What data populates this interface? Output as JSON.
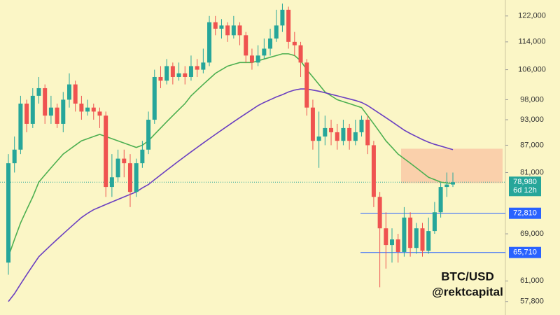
{
  "chart_data": {
    "type": "candlestick",
    "log_scale": true,
    "up_color": "#26a69a",
    "down_color": "#ef5350",
    "ylim": [
      55800,
      127200
    ],
    "yticks": [
      {
        "value": 122000,
        "label": "122,000"
      },
      {
        "value": 114000,
        "label": "114,000"
      },
      {
        "value": 106000,
        "label": "106,000"
      },
      {
        "value": 98000,
        "label": "98,000"
      },
      {
        "value": 93000,
        "label": "93,000"
      },
      {
        "value": 87000,
        "label": "87,000"
      },
      {
        "value": 81000,
        "label": "81,000"
      },
      {
        "value": 69000,
        "label": "69,000"
      },
      {
        "value": 61000,
        "label": "61,000"
      },
      {
        "value": 57800,
        "label": "57,800"
      }
    ],
    "open": [
      64000,
      83000,
      86000,
      97000,
      92000,
      99000,
      101000,
      94000,
      96000,
      92000,
      98000,
      102000,
      97000,
      95000,
      96000,
      95000,
      94000,
      78000,
      80000,
      84000,
      83000,
      77000,
      83000,
      86000,
      93000,
      104000,
      103000,
      107000,
      104000,
      105000,
      104000,
      107000,
      106000,
      108000,
      120000,
      118000,
      119000,
      116000,
      119000,
      116000,
      110000,
      108000,
      110000,
      112000,
      115000,
      119000,
      124000,
      114000,
      113000,
      108000,
      96000,
      88000,
      89000,
      91000,
      90000,
      88000,
      91000,
      88000,
      90000,
      93000,
      87000,
      76000,
      70000,
      67000,
      68000,
      65800,
      72000,
      66500,
      70000,
      66000,
      69500,
      73000,
      78000,
      78500
    ],
    "high": [
      85000,
      89000,
      99000,
      98000,
      101000,
      104000,
      102000,
      99000,
      97000,
      100000,
      105000,
      103000,
      99000,
      98000,
      97000,
      96000,
      95000,
      85000,
      86000,
      86000,
      85000,
      84000,
      88000,
      95000,
      106000,
      107000,
      109000,
      108000,
      108000,
      107000,
      110000,
      109000,
      112000,
      122000,
      122000,
      121000,
      120000,
      122000,
      120000,
      117000,
      112000,
      113000,
      115000,
      118000,
      124000,
      126000,
      125000,
      117000,
      114000,
      109000,
      98000,
      95000,
      94000,
      93000,
      92000,
      93000,
      92000,
      93000,
      94000,
      94000,
      88000,
      77000,
      73000,
      70000,
      69000,
      74000,
      73000,
      71000,
      71000,
      72000,
      75000,
      79000,
      81000,
      81000
    ],
    "low": [
      62000,
      81000,
      85000,
      90000,
      91000,
      97000,
      92000,
      92000,
      91000,
      90000,
      96000,
      95000,
      93000,
      94000,
      93000,
      91000,
      76000,
      76000,
      79000,
      80000,
      74000,
      76000,
      82000,
      85000,
      92000,
      101000,
      102000,
      102000,
      103000,
      102000,
      103000,
      104000,
      105000,
      107000,
      116000,
      115000,
      114000,
      115000,
      113000,
      108000,
      106000,
      107000,
      109000,
      110000,
      114000,
      117000,
      112000,
      110000,
      104000,
      94000,
      86000,
      82000,
      87000,
      87000,
      86000,
      87000,
      86000,
      87000,
      89000,
      85000,
      74000,
      60000,
      63000,
      64000,
      64000,
      65000,
      65000,
      65500,
      65000,
      65500,
      69000,
      72000,
      76000,
      78000
    ],
    "close": [
      83000,
      86000,
      97000,
      92000,
      99000,
      101000,
      94000,
      96000,
      92000,
      98000,
      102000,
      97000,
      95000,
      96000,
      95000,
      94000,
      78000,
      80000,
      84000,
      83000,
      77000,
      83000,
      86000,
      93000,
      104000,
      103000,
      107000,
      104000,
      105000,
      104000,
      107000,
      106000,
      108000,
      120000,
      118000,
      119000,
      116000,
      119000,
      116000,
      110000,
      108000,
      110000,
      112000,
      115000,
      119000,
      124000,
      114000,
      113000,
      108000,
      96000,
      88000,
      89000,
      91000,
      90000,
      88000,
      91000,
      88000,
      90000,
      93000,
      87000,
      76000,
      70000,
      67000,
      68000,
      65800,
      72000,
      66500,
      70000,
      66000,
      69500,
      73000,
      78000,
      78500,
      78980
    ],
    "moving_averages": [
      {
        "color": "#4caf50",
        "values": [
          65000,
          68000,
          71000,
          73500,
          76000,
          79000,
          80500,
          82000,
          83500,
          85000,
          86000,
          87000,
          88000,
          88500,
          89000,
          89500,
          89000,
          88500,
          88000,
          87500,
          87000,
          86500,
          87000,
          88000,
          89500,
          91000,
          92500,
          94000,
          95500,
          97000,
          99000,
          100500,
          102000,
          103500,
          105000,
          106000,
          107000,
          107500,
          108000,
          108000,
          108000,
          108500,
          109000,
          109500,
          110000,
          110500,
          110500,
          110000,
          108500,
          106000,
          104000,
          102000,
          100000,
          99000,
          98000,
          97500,
          97000,
          96500,
          96000,
          94000,
          92000,
          90000,
          88000,
          86500,
          85000,
          84000,
          83000,
          82000,
          81000,
          80000,
          79500,
          79000,
          78800,
          78700
        ]
      },
      {
        "color": "#6a3fc1",
        "values": [
          57800,
          59000,
          60500,
          62000,
          63500,
          65000,
          66000,
          67000,
          68000,
          69000,
          70000,
          71000,
          72000,
          72800,
          73500,
          74000,
          74500,
          75000,
          75500,
          76000,
          76500,
          77000,
          77800,
          78500,
          79500,
          80500,
          81500,
          82500,
          83500,
          84500,
          85500,
          86500,
          87500,
          88500,
          89500,
          90500,
          91500,
          92500,
          93500,
          94500,
          95500,
          96500,
          97300,
          98000,
          98700,
          99300,
          100000,
          100500,
          100800,
          100800,
          100500,
          100200,
          99800,
          99400,
          99000,
          98600,
          98200,
          97800,
          97300,
          96500,
          95500,
          94500,
          93500,
          92500,
          91500,
          90500,
          89700,
          89000,
          88300,
          87700,
          87200,
          86800,
          86400,
          86000
        ]
      }
    ],
    "zone": {
      "range": [
        78800,
        86200
      ],
      "color": "#f9c9a6"
    },
    "levels": [
      {
        "value": 72810,
        "label": "72,810"
      },
      {
        "value": 65710,
        "label": "65,710"
      }
    ],
    "level_color": "#2962ff",
    "current_price": {
      "value": 78980,
      "label": "78,980"
    },
    "countdown": "6d 12h",
    "pair": "BTC/USD",
    "author": "@rektcapital"
  }
}
